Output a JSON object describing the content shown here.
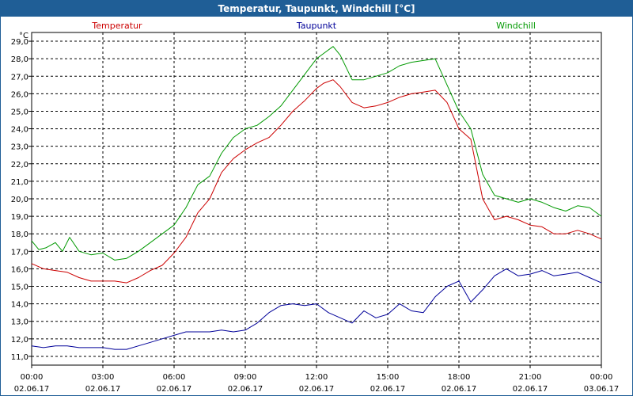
{
  "chart_data": {
    "type": "line",
    "title": "Temperatur, Taupunkt, Windchill [°C]",
    "ylabel": "°C",
    "ylim": [
      10.5,
      29.5
    ],
    "yticks": [
      "29,0",
      "28,0",
      "27,0",
      "26,0",
      "25,0",
      "24,0",
      "23,0",
      "22,0",
      "21,0",
      "20,0",
      "19,0",
      "18,0",
      "17,0",
      "16,0",
      "15,0",
      "14,0",
      "13,0",
      "12,0",
      "11,0"
    ],
    "xlim": [
      0,
      24
    ],
    "xticks": [
      {
        "time": "00:00",
        "date": "02.06.17"
      },
      {
        "time": "03:00",
        "date": "02.06.17"
      },
      {
        "time": "06:00",
        "date": "02.06.17"
      },
      {
        "time": "09:00",
        "date": "02.06.17"
      },
      {
        "time": "12:00",
        "date": "02.06.17"
      },
      {
        "time": "15:00",
        "date": "02.06.17"
      },
      {
        "time": "18:00",
        "date": "02.06.17"
      },
      {
        "time": "21:00",
        "date": "02.06.17"
      },
      {
        "time": "00:00",
        "date": "03.06.17"
      }
    ],
    "grid": true,
    "series": [
      {
        "name": "Temperatur",
        "color": "#cc0000",
        "x": [
          0,
          0.5,
          1,
          1.5,
          2,
          2.5,
          3,
          3.5,
          4,
          4.5,
          5,
          5.5,
          6,
          6.5,
          7,
          7.5,
          8,
          8.5,
          9,
          9.5,
          10,
          10.5,
          11,
          11.5,
          12,
          12.3,
          12.7,
          13,
          13.5,
          14,
          14.5,
          15,
          15.5,
          16,
          16.5,
          17,
          17.5,
          18,
          18.5,
          19,
          19.5,
          20,
          20.5,
          21,
          21.5,
          22,
          22.5,
          23,
          23.5,
          24
        ],
        "values": [
          16.3,
          16.0,
          15.9,
          15.8,
          15.5,
          15.3,
          15.3,
          15.3,
          15.2,
          15.5,
          15.9,
          16.2,
          16.9,
          17.8,
          19.2,
          20.0,
          21.5,
          22.3,
          22.8,
          23.2,
          23.5,
          24.2,
          25.0,
          25.6,
          26.3,
          26.6,
          26.8,
          26.4,
          25.5,
          25.2,
          25.3,
          25.5,
          25.8,
          26.0,
          26.1,
          26.2,
          25.5,
          24.0,
          23.4,
          20.0,
          18.8,
          19.0,
          18.8,
          18.5,
          18.4,
          18.0,
          18.0,
          18.2,
          18.0,
          17.7
        ]
      },
      {
        "name": "Taupunkt",
        "color": "#000099",
        "x": [
          0,
          0.5,
          1,
          1.5,
          2,
          2.5,
          3,
          3.5,
          4,
          4.5,
          5,
          5.5,
          6,
          6.5,
          7,
          7.5,
          8,
          8.5,
          9,
          9.5,
          10,
          10.5,
          11,
          11.5,
          12,
          12.5,
          13,
          13.5,
          14,
          14.5,
          15,
          15.5,
          16,
          16.5,
          17,
          17.5,
          18,
          18.5,
          19,
          19.5,
          20,
          20.5,
          21,
          21.5,
          22,
          22.5,
          23,
          23.5,
          24
        ],
        "values": [
          11.6,
          11.5,
          11.6,
          11.6,
          11.5,
          11.5,
          11.5,
          11.4,
          11.4,
          11.6,
          11.8,
          12.0,
          12.2,
          12.4,
          12.4,
          12.4,
          12.5,
          12.4,
          12.5,
          12.9,
          13.5,
          13.9,
          14.0,
          13.9,
          14.0,
          13.5,
          13.2,
          12.9,
          13.6,
          13.2,
          13.4,
          14.0,
          13.6,
          13.5,
          14.4,
          15.0,
          15.3,
          14.1,
          14.8,
          15.6,
          16.0,
          15.6,
          15.7,
          15.9,
          15.6,
          15.7,
          15.8,
          15.5,
          15.2
        ]
      },
      {
        "name": "Windchill",
        "color": "#009900",
        "x": [
          0,
          0.3,
          0.6,
          1,
          1.3,
          1.6,
          2,
          2.5,
          3,
          3.5,
          4,
          4.5,
          5,
          5.5,
          6,
          6.5,
          7,
          7.5,
          8,
          8.5,
          9,
          9.5,
          10,
          10.5,
          11,
          11.5,
          12,
          12.3,
          12.7,
          13,
          13.5,
          14,
          14.5,
          15,
          15.5,
          16,
          16.5,
          17,
          17.5,
          18,
          18.5,
          19,
          19.5,
          20,
          20.5,
          21,
          21.5,
          22,
          22.5,
          23,
          23.5,
          24
        ],
        "values": [
          17.6,
          17.1,
          17.2,
          17.5,
          17.0,
          17.8,
          17.0,
          16.8,
          16.9,
          16.5,
          16.6,
          17.0,
          17.5,
          18.0,
          18.5,
          19.5,
          20.8,
          21.3,
          22.6,
          23.5,
          24.0,
          24.2,
          24.7,
          25.3,
          26.2,
          27.1,
          28.0,
          28.3,
          28.7,
          28.2,
          26.8,
          26.8,
          27.0,
          27.2,
          27.6,
          27.8,
          27.9,
          28.0,
          26.5,
          25.0,
          24.0,
          21.4,
          20.2,
          20.0,
          19.8,
          20.0,
          19.8,
          19.5,
          19.3,
          19.6,
          19.5,
          19.0
        ]
      }
    ]
  }
}
